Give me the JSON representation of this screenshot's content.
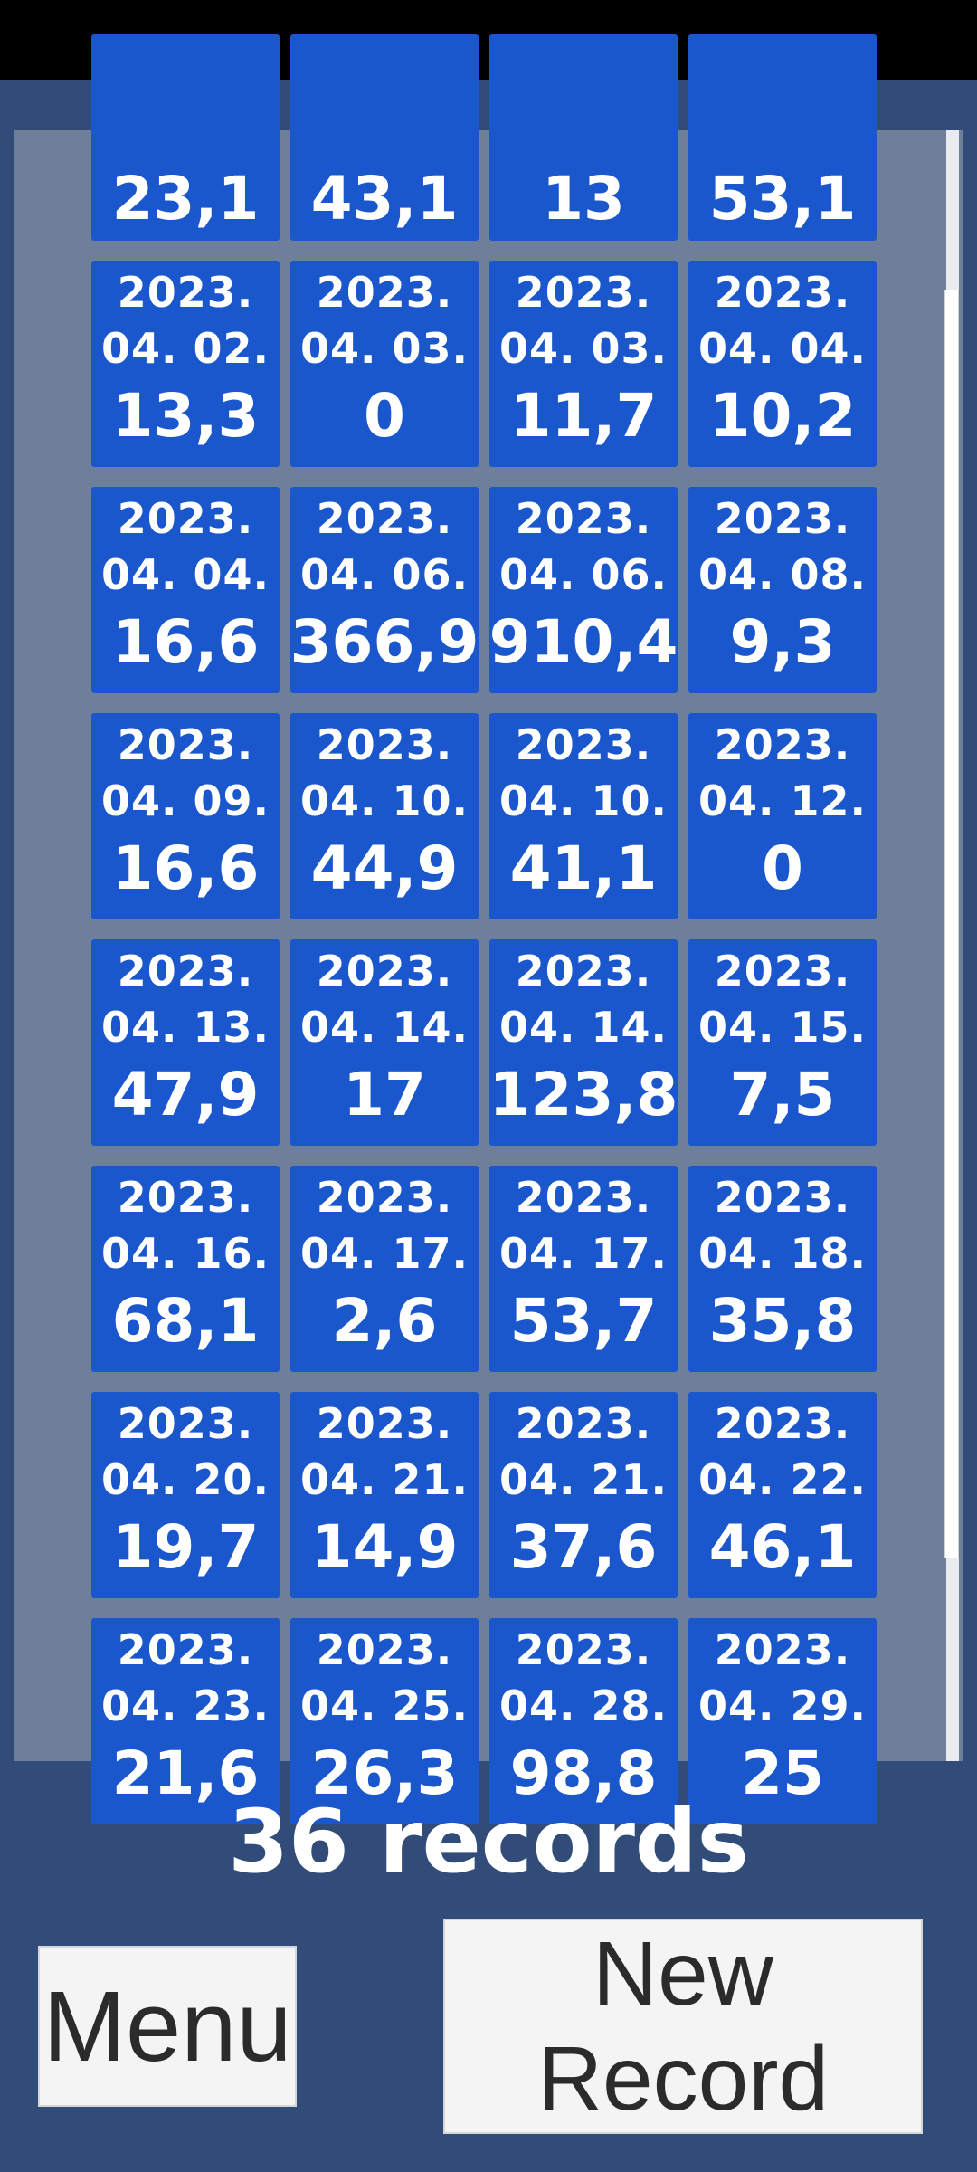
{
  "list": {
    "partial_row": [
      {
        "line1": "",
        "line2": "",
        "value": "23,1"
      },
      {
        "line1": "",
        "line2": "",
        "value": "43,1"
      },
      {
        "line1": "",
        "line2": "",
        "value": "13"
      },
      {
        "line1": "",
        "line2": "",
        "value": "53,1"
      }
    ],
    "rows": [
      [
        {
          "line1": "2023.",
          "line2": "04. 02.",
          "value": "13,3"
        },
        {
          "line1": "2023.",
          "line2": "04. 03.",
          "value": "0"
        },
        {
          "line1": "2023.",
          "line2": "04. 03.",
          "value": "11,7"
        },
        {
          "line1": "2023.",
          "line2": "04. 04.",
          "value": "10,2"
        }
      ],
      [
        {
          "line1": "2023.",
          "line2": "04. 04.",
          "value": "16,6"
        },
        {
          "line1": "2023.",
          "line2": "04. 06.",
          "value": "366,9"
        },
        {
          "line1": "2023.",
          "line2": "04. 06.",
          "value": "910,4"
        },
        {
          "line1": "2023.",
          "line2": "04. 08.",
          "value": "9,3"
        }
      ],
      [
        {
          "line1": "2023.",
          "line2": "04. 09.",
          "value": "16,6"
        },
        {
          "line1": "2023.",
          "line2": "04. 10.",
          "value": "44,9"
        },
        {
          "line1": "2023.",
          "line2": "04. 10.",
          "value": "41,1"
        },
        {
          "line1": "2023.",
          "line2": "04. 12.",
          "value": "0"
        }
      ],
      [
        {
          "line1": "2023.",
          "line2": "04. 13.",
          "value": "47,9"
        },
        {
          "line1": "2023.",
          "line2": "04. 14.",
          "value": "17"
        },
        {
          "line1": "2023.",
          "line2": "04. 14.",
          "value": "123,8"
        },
        {
          "line1": "2023.",
          "line2": "04. 15.",
          "value": "7,5"
        }
      ],
      [
        {
          "line1": "2023.",
          "line2": "04. 16.",
          "value": "68,1"
        },
        {
          "line1": "2023.",
          "line2": "04. 17.",
          "value": "2,6"
        },
        {
          "line1": "2023.",
          "line2": "04. 17.",
          "value": "53,7"
        },
        {
          "line1": "2023.",
          "line2": "04. 18.",
          "value": "35,8"
        }
      ],
      [
        {
          "line1": "2023.",
          "line2": "04. 20.",
          "value": "19,7"
        },
        {
          "line1": "2023.",
          "line2": "04. 21.",
          "value": "14,9"
        },
        {
          "line1": "2023.",
          "line2": "04. 21.",
          "value": "37,6"
        },
        {
          "line1": "2023.",
          "line2": "04. 22.",
          "value": "46,1"
        }
      ],
      [
        {
          "line1": "2023.",
          "line2": "04. 23.",
          "value": "21,6"
        },
        {
          "line1": "2023.",
          "line2": "04. 25.",
          "value": "26,3"
        },
        {
          "line1": "2023.",
          "line2": "04. 28.",
          "value": "98,8"
        },
        {
          "line1": "2023.",
          "line2": "04. 29.",
          "value": "25"
        }
      ]
    ]
  },
  "summary": {
    "count_text": "36 records"
  },
  "buttons": {
    "menu_label": "Menu",
    "new_record_line1": "New",
    "new_record_line2": "Record"
  },
  "colors": {
    "background": "#314c78",
    "panel": "#6e7f9a",
    "card": "#1a56cc",
    "status_bar": "#000000"
  }
}
